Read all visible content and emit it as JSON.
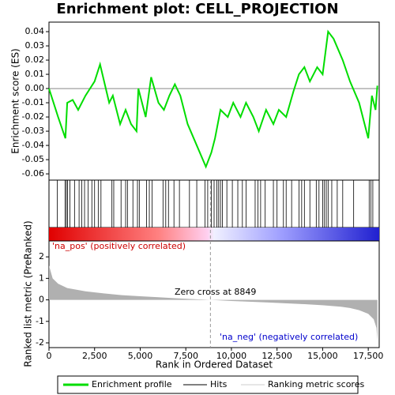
{
  "chart_data": [
    {
      "type": "line",
      "title": "Enrichment plot: CELL_PROJECTION",
      "y_label": "Enrichment score (ES)",
      "xlim": [
        0,
        18100
      ],
      "ylim": [
        -0.0644,
        0.0467
      ],
      "yticks": [
        0.04,
        0.03,
        0.02,
        0.01,
        {
          "value": 0,
          "label": "0.00"
        },
        -0.01,
        -0.02,
        -0.03,
        -0.04,
        -0.05,
        -0.06
      ],
      "x": [
        0,
        500,
        900,
        1000,
        1300,
        1600,
        2000,
        2500,
        2800,
        3300,
        3500,
        3900,
        4200,
        4500,
        4800,
        4900,
        5300,
        5600,
        6000,
        6300,
        6600,
        6900,
        7200,
        7600,
        8100,
        8600,
        8900,
        9100,
        9400,
        9800,
        10100,
        10500,
        10800,
        11200,
        11500,
        11900,
        12300,
        12600,
        13000,
        13400,
        13700,
        14000,
        14300,
        14700,
        15000,
        15300,
        15600,
        16100,
        16500,
        17000,
        17500,
        17700,
        17900,
        18000
      ],
      "series": [
        {
          "name": "Enrichment profile",
          "color": "#00dd00",
          "values": [
            0,
            -0.02,
            -0.035,
            -0.01,
            -0.008,
            -0.015,
            -0.005,
            0.005,
            0.017,
            -0.01,
            -0.005,
            -0.025,
            -0.015,
            -0.025,
            -0.03,
            0,
            -0.02,
            0.008,
            -0.01,
            -0.015,
            -0.005,
            0.003,
            -0.005,
            -0.025,
            -0.04,
            -0.055,
            -0.045,
            -0.035,
            -0.015,
            -0.02,
            -0.01,
            -0.02,
            -0.01,
            -0.02,
            -0.03,
            -0.015,
            -0.025,
            -0.015,
            -0.02,
            -0.002,
            0.01,
            0.015,
            0.005,
            0.015,
            0.01,
            0.04,
            0.035,
            0.02,
            0.005,
            -0.01,
            -0.035,
            -0.005,
            -0.015,
            0.002
          ]
        }
      ]
    },
    {
      "type": "hits",
      "name": "Hits",
      "x": [
        450,
        880,
        950,
        1020,
        1150,
        1400,
        1650,
        1800,
        1950,
        2150,
        2350,
        2500,
        2700,
        2850,
        3450,
        3550,
        3950,
        4200,
        4300,
        4600,
        4850,
        4950,
        5350,
        5500,
        5650,
        6250,
        6400,
        6550,
        6850,
        7150,
        7700,
        8100,
        8550,
        8700,
        8900,
        9050,
        9200,
        9300,
        9400,
        9500,
        9750,
        10050,
        10350,
        10600,
        10800,
        11300,
        11450,
        11600,
        11850,
        12300,
        12500,
        12850,
        13000,
        13300,
        13700,
        13850,
        14000,
        14300,
        14650,
        14800,
        15000,
        15100,
        15200,
        15300,
        15500,
        15800,
        16100,
        16700,
        17550,
        17650,
        17750
      ]
    },
    {
      "type": "area",
      "name": "Ranking metric scores",
      "y_label": "Ranked list metric (PreRanked)",
      "x_label": "Rank in Ordered Dataset",
      "pos_label": "'na_pos' (positively correlated)",
      "neg_label": "'na_neg' (negatively correlated)",
      "zero_label": "Zero cross at 8849",
      "xlim": [
        0,
        18100
      ],
      "ylim": [
        -2.22,
        2.74
      ],
      "xticks": [
        0,
        {
          "value": 2500,
          "label": "2,500"
        },
        {
          "value": 5000,
          "label": "5,000"
        },
        {
          "value": 7500,
          "label": "7,500"
        },
        {
          "value": 10000,
          "label": "10,000"
        },
        {
          "value": 12500,
          "label": "12,500"
        },
        {
          "value": 15000,
          "label": "15,000"
        },
        {
          "value": 17500,
          "label": "17,500"
        }
      ],
      "yticks": [
        2,
        1,
        0,
        -1,
        -2
      ],
      "x": [
        0,
        200,
        500,
        1000,
        2000,
        3000,
        4000,
        5000,
        6000,
        7000,
        8000,
        8849,
        10000,
        12000,
        14000,
        15000,
        16000,
        16500,
        17000,
        17500,
        17800,
        17950,
        18000
      ],
      "values": [
        1.6,
        1.0,
        0.75,
        0.55,
        0.4,
        0.3,
        0.22,
        0.17,
        0.12,
        0.07,
        0.03,
        0,
        -0.05,
        -0.12,
        -0.2,
        -0.25,
        -0.32,
        -0.38,
        -0.48,
        -0.65,
        -0.9,
        -1.3,
        -1.9
      ],
      "color": "#b0b0b0"
    }
  ]
}
